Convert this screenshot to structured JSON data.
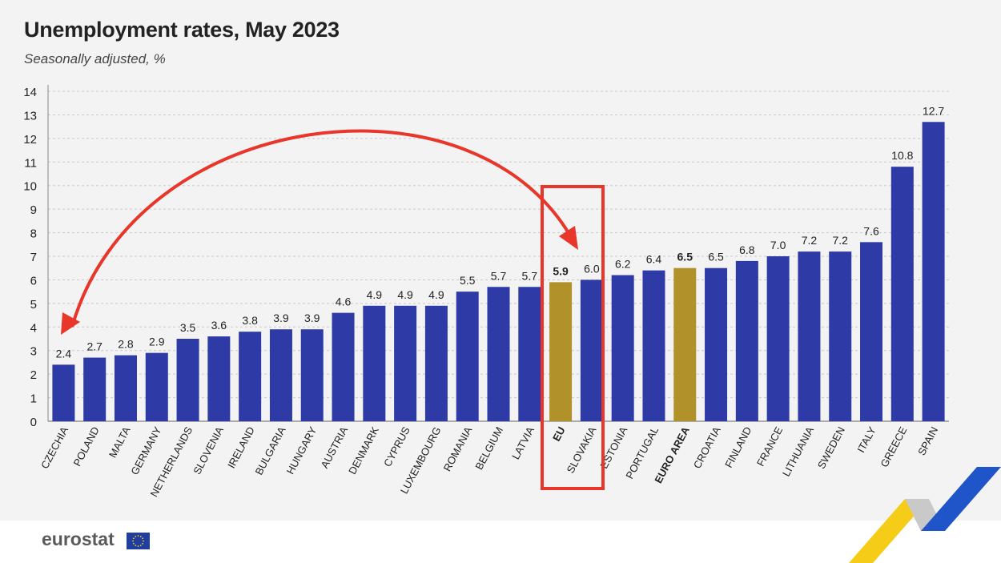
{
  "title": "Unemployment rates, May 2023",
  "subtitle": "Seasonally adjusted, %",
  "brand": "eurostat",
  "colors": {
    "bar": "#2e3aa6",
    "highlight": "#b1922a",
    "grid": "#c9c9c9",
    "annotation": "#e8362a",
    "logo_yellow": "#f5cc17",
    "logo_blue": "#1f55c8",
    "logo_grey": "#c9c9c9"
  },
  "chart_data": {
    "type": "bar",
    "title": "Unemployment rates, May 2023",
    "subtitle": "Seasonally adjusted, %",
    "ylim": [
      0,
      14
    ],
    "yticks": [
      0,
      1,
      2,
      3,
      4,
      5,
      6,
      7,
      8,
      9,
      10,
      11,
      12,
      13,
      14
    ],
    "grid": true,
    "categories": [
      "CZECHIA",
      "POLAND",
      "MALTA",
      "GERMANY",
      "NETHERLANDS",
      "SLOVENIA",
      "IRELAND",
      "BULGARIA",
      "HUNGARY",
      "AUSTRIA",
      "DENMARK",
      "CYPRUS",
      "LUXEMBOURG",
      "ROMANIA",
      "BELGIUM",
      "LATVIA",
      "EU",
      "SLOVAKIA",
      "ESTONIA",
      "PORTUGAL",
      "EURO AREA",
      "CROATIA",
      "FINLAND",
      "FRANCE",
      "LITHUANIA",
      "SWEDEN",
      "ITALY",
      "GREECE",
      "SPAIN"
    ],
    "values": [
      2.4,
      2.7,
      2.8,
      2.9,
      3.5,
      3.6,
      3.8,
      3.9,
      3.9,
      4.6,
      4.9,
      4.9,
      4.9,
      5.5,
      5.7,
      5.7,
      5.9,
      6.0,
      6.2,
      6.4,
      6.5,
      6.5,
      6.8,
      7.0,
      7.2,
      7.2,
      7.6,
      10.8,
      12.7
    ],
    "value_labels": [
      "2.4",
      "2.7",
      "2.8",
      "2.9",
      "3.5",
      "3.6",
      "3.8",
      "3.9",
      "3.9",
      "4.6",
      "4.9",
      "4.9",
      "4.9",
      "5.5",
      "5.7",
      "5.7",
      "5.9",
      "6.0",
      "6.2",
      "6.4",
      "6.5",
      "6.5",
      "6.8",
      "7.0",
      "7.2",
      "7.2",
      "7.6",
      "10.8",
      "12.7"
    ],
    "highlighted": [
      "EU",
      "EURO AREA"
    ]
  }
}
